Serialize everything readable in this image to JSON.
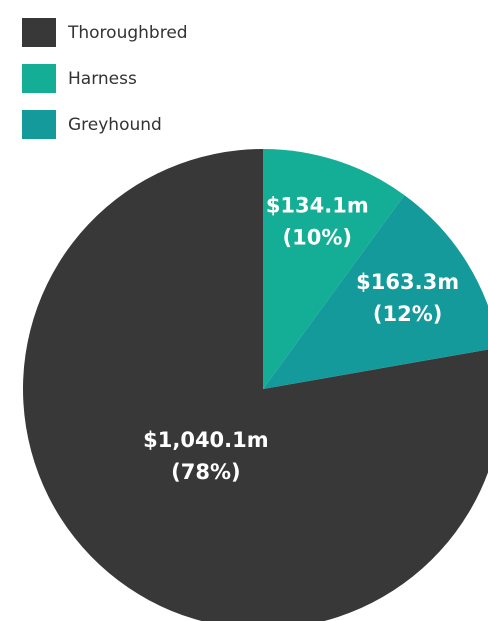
{
  "chart_data": {
    "type": "pie",
    "categories": [
      "Thoroughbred",
      "Harness",
      "Greyhound"
    ],
    "values": [
      1040.1,
      134.1,
      163.3
    ],
    "value_labels": [
      "$1,040.1m",
      "$134.1m",
      "$163.3m"
    ],
    "percents": [
      78,
      10,
      12
    ],
    "percent_labels": [
      "(78%)",
      "(10%)",
      "(12%)"
    ],
    "colors": [
      "#383838",
      "#14ae96",
      "#159a9c"
    ],
    "legend": "top-left"
  }
}
